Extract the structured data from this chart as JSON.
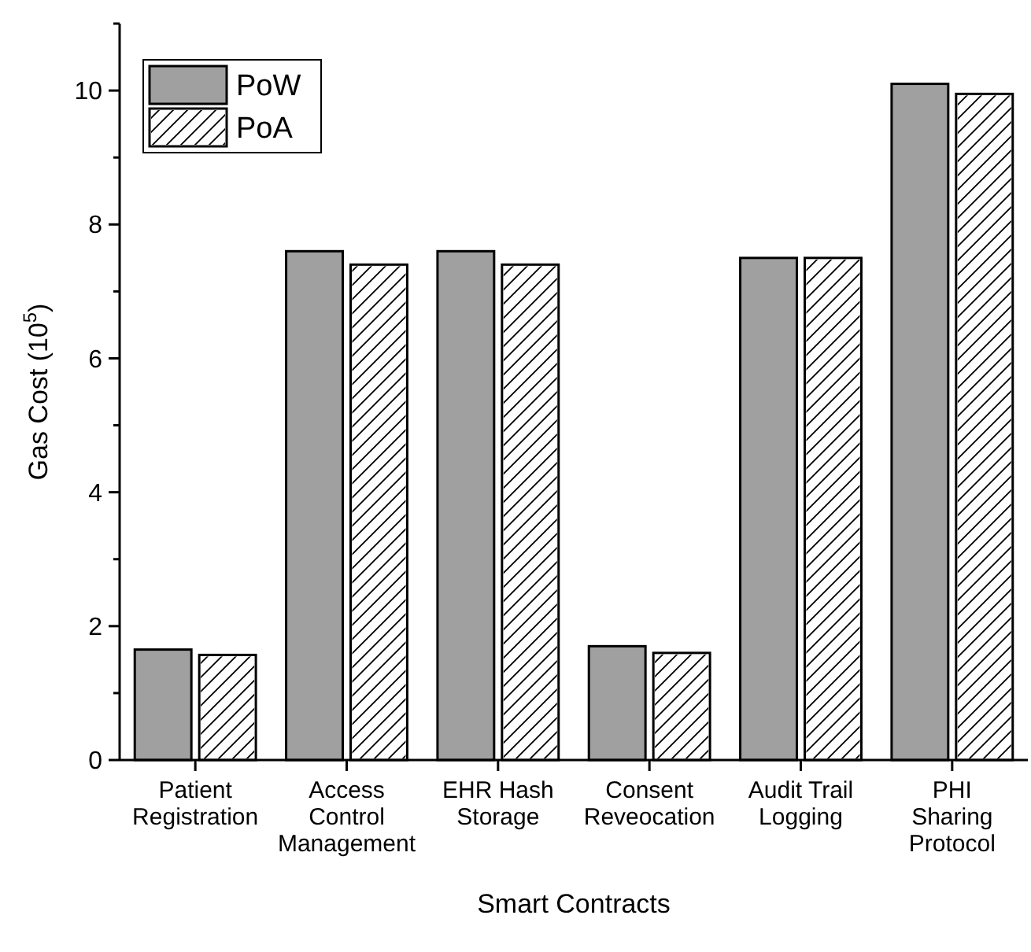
{
  "chart_data": {
    "type": "bar",
    "xlabel": "Smart Contracts",
    "ylabel": "Gas Cost (10$^{5}$)",
    "categories": [
      "Patient\nRegistration",
      "Access\nControl\nManagement",
      "EHR Hash\nStorage",
      "Consent\nReveocation",
      "Audit Trail\nLogging",
      "PHI\nSharing\nProtocol"
    ],
    "series": [
      {
        "name": "PoW",
        "color": "#a0a0a0",
        "values": [
          1.65,
          7.6,
          7.6,
          1.7,
          7.5,
          10.1
        ]
      },
      {
        "name": "PoA",
        "color": "#ffffff",
        "values": [
          1.57,
          7.4,
          7.4,
          1.6,
          7.5,
          9.95
        ]
      }
    ],
    "ylim": [
      0,
      11
    ],
    "yticks": [
      0,
      {
        "value": 1,
        "label": null
      },
      2,
      {
        "value": 3,
        "label": null
      },
      4,
      {
        "value": 5,
        "label": null
      },
      6,
      {
        "value": 7,
        "label": null
      },
      8,
      {
        "value": 9,
        "label": null
      },
      10,
      {
        "value": 11,
        "label": null
      }
    ],
    "legend": "top left",
    "grid": false
  }
}
